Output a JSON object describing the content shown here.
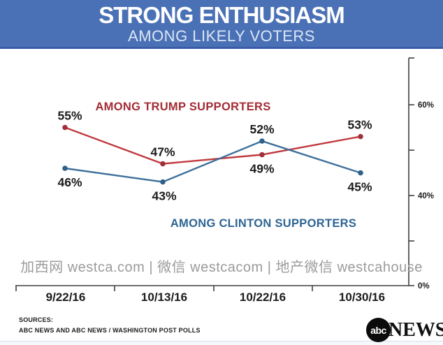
{
  "header": {
    "title": "STRONG ENTHUSIASM",
    "subtitle": "AMONG LIKELY VOTERS",
    "bg_color": "#4a71b5",
    "border_color": "#3a5ca8"
  },
  "chart_data": {
    "type": "line",
    "categories": [
      "9/22/16",
      "10/13/16",
      "10/22/16",
      "10/30/16"
    ],
    "series": [
      {
        "name": "AMONG TRUMP SUPPORTERS",
        "values": [
          55,
          47,
          49,
          53
        ],
        "line_color": "#bf3a3f",
        "point_color": "#a0313a",
        "label_color": "#a32c35"
      },
      {
        "name": "AMONG CLINTON SUPPORTERS",
        "values": [
          46,
          43,
          52,
          45
        ],
        "line_color": "#40719b",
        "point_color": "#2f5f8a",
        "label_color": "#2e6493"
      }
    ],
    "value_suffix": "%",
    "value_label_color": "#1b1b1b",
    "axis_color": "#3f3f3f",
    "y_axis": {
      "side": "right",
      "tick_labels": [
        "60%",
        "40%",
        "0%"
      ],
      "visible_range": [
        40,
        60
      ],
      "grid": false
    },
    "legend_position": "inline-labels"
  },
  "watermark": "加西网 westca.com | 微信 westcacom | 地产微信 westcahouse",
  "footer": {
    "sources_label": "SOURCES:",
    "sources_text": "ABC NEWS AND ABC NEWS / WASHINGTON POST POLLS",
    "logo": {
      "circle_text": "abc",
      "news_text": "NEWS"
    }
  }
}
